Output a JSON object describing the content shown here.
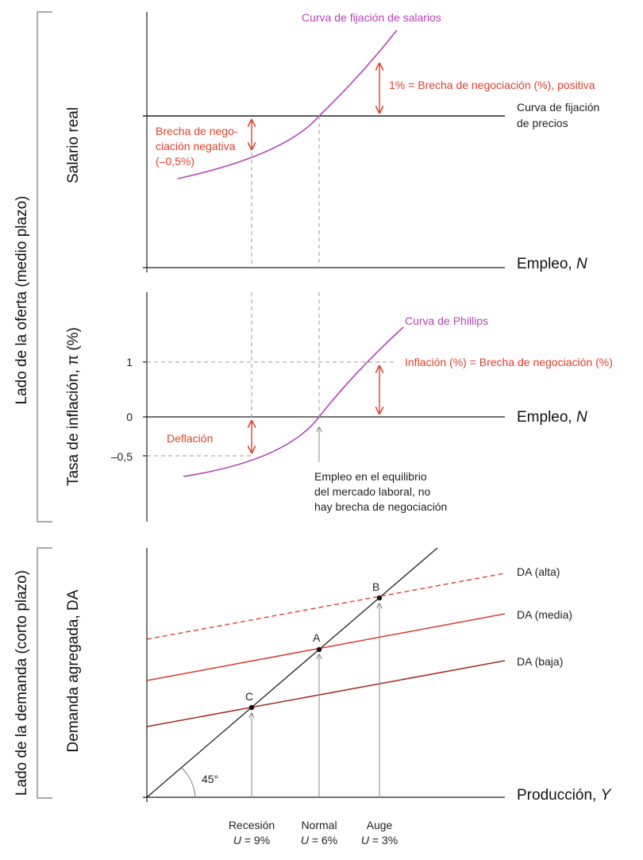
{
  "side_labels": {
    "supply": "Lado de la oferta (medio plazo)",
    "demand": "Lado de la demanda (corto plazo)"
  },
  "panel1": {
    "y_axis": "Salario real",
    "x_axis": "Empleo, ",
    "x_axis_var": "N",
    "wage_curve": "Curva de fijación de salarios",
    "price_curve_l1": "Curva de fijación",
    "price_curve_l2": "de precios",
    "gap_positive": "1% = Brecha de negociación (%), positiva",
    "gap_negative_l1": "Brecha de nego-",
    "gap_negative_l2": "ciación negativa",
    "gap_negative_l3": "(–0,5%)"
  },
  "panel2": {
    "y_axis": "Tasa de inflación, π (%)",
    "x_axis": "Empleo, ",
    "x_axis_var": "N",
    "phillips": "Curva de Phillips",
    "inflation_note": "Inflación (%) = Brecha de negociación (%)",
    "deflation": "Deflación",
    "tick_1": "1",
    "tick_0": "0",
    "tick_neg": "–0,5",
    "eq_l1": "Empleo en el equilibrio",
    "eq_l2": "del mercado laboral, no",
    "eq_l3": "hay brecha de negociación"
  },
  "panel3": {
    "y_axis": "Demanda agregada, DA",
    "x_axis": "Producción, ",
    "x_axis_var": "Y",
    "da_high": "DA (alta)",
    "da_mid": "DA (media)",
    "da_low": "DA (baja)",
    "point_a": "A",
    "point_b": "B",
    "point_c": "C",
    "angle": "45°",
    "recession": "Recesión",
    "recession_u_var": "U",
    "recession_u": " = 9%",
    "normal": "Normal",
    "normal_u_var": "U",
    "normal_u": " = 6%",
    "boom": "Auge",
    "boom_u_var": "U",
    "boom_u": " = 3%"
  },
  "colors": {
    "purple": "#b544b5",
    "red_annotation": "#e0402a",
    "da_high": "#e0402a",
    "da_mid": "#d83a2a",
    "da_low": "#a52a1e"
  }
}
